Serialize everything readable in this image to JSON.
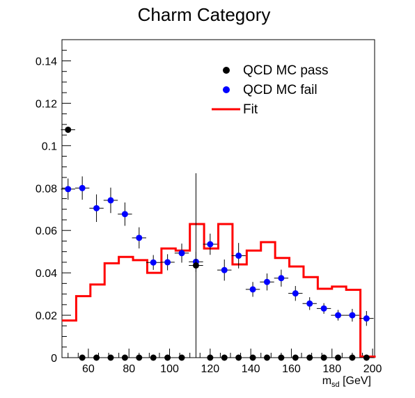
{
  "chart_data": {
    "type": "scatter",
    "title": "Charm Category",
    "xlabel_main": "m",
    "xlabel_sub": "sd",
    "xlabel_unit": " [GeV]",
    "ylabel": "",
    "xlim": [
      47,
      201
    ],
    "ylim": [
      0,
      0.15
    ],
    "x_ticks": [
      "60",
      "80",
      "100",
      "120",
      "140",
      "160",
      "180",
      "200"
    ],
    "y_ticks": [
      "0",
      "0.02",
      "0.04",
      "0.06",
      "0.08",
      "0.1",
      "0.12",
      "0.14"
    ],
    "bin_width": 7,
    "grid": false,
    "legend_position": "top-right",
    "series": [
      {
        "name": "QCD MC pass",
        "color": "#000000",
        "x": [
          50,
          57,
          64,
          71,
          78,
          85,
          92,
          99,
          106,
          113,
          120,
          127,
          134,
          141,
          148,
          155,
          162,
          169,
          176,
          183,
          190,
          197
        ],
        "y": [
          0.1075,
          0,
          0,
          0,
          0,
          0,
          0,
          0,
          0,
          0.0435,
          0,
          0,
          0,
          0,
          0,
          0,
          0,
          0,
          0,
          0,
          0,
          0
        ],
        "yerr": [
          0,
          0,
          0,
          0,
          0,
          0,
          0,
          0,
          0,
          0.0435,
          0,
          0,
          0,
          0,
          0,
          0,
          0,
          0,
          0,
          0,
          0,
          0
        ]
      },
      {
        "name": "QCD MC fail",
        "color": "#0000ff",
        "x": [
          50,
          57,
          64,
          71,
          78,
          85,
          92,
          99,
          106,
          113,
          120,
          127,
          134,
          141,
          148,
          155,
          162,
          169,
          176,
          183,
          190,
          197
        ],
        "y": [
          0.0795,
          0.08,
          0.0705,
          0.0742,
          0.0677,
          0.0565,
          0.0449,
          0.045,
          0.0493,
          0.0452,
          0.0535,
          0.0413,
          0.0481,
          0.0322,
          0.0357,
          0.0375,
          0.0303,
          0.0255,
          0.0232,
          0.02,
          0.02,
          0.0185
        ],
        "yerr": [
          0.005,
          0.0055,
          0.0065,
          0.006,
          0.0055,
          0.005,
          0.0035,
          0.0038,
          0.0045,
          0.0048,
          0.005,
          0.005,
          0.006,
          0.0035,
          0.004,
          0.004,
          0.0035,
          0.003,
          0.0025,
          0.0025,
          0.003,
          0.0035
        ]
      },
      {
        "name": "Fit",
        "color": "#ff0000",
        "type": "step",
        "edges": [
          47,
          54,
          61,
          68,
          75,
          82,
          89,
          96,
          103,
          110,
          117,
          124,
          131,
          138,
          145,
          152,
          159,
          166,
          173,
          180,
          187,
          194,
          201
        ],
        "values": [
          0.0175,
          0.029,
          0.0345,
          0.0445,
          0.0475,
          0.046,
          0.04,
          0.0515,
          0.0505,
          0.063,
          0.0515,
          0.063,
          0.044,
          0.0505,
          0.0545,
          0.047,
          0.043,
          0.038,
          0.0325,
          0.0335,
          0.032,
          0.0005
        ]
      }
    ]
  }
}
